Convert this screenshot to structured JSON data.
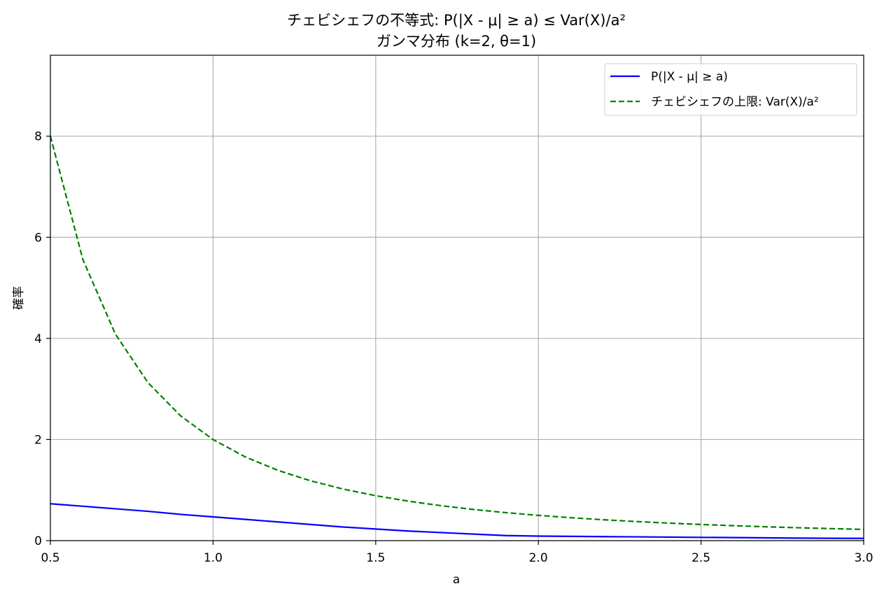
{
  "chart_data": {
    "type": "line",
    "title": "チェビシェフの不等式: P(|X - μ| ≥ a) ≤ Var(X)/a²",
    "subtitle": "ガンマ分布 (k=2, θ=1)",
    "xlabel": "a",
    "ylabel": "確率",
    "xlim": [
      0.5,
      3.0
    ],
    "ylim": [
      0,
      9.6
    ],
    "x_ticks": [
      "0.5",
      "1.0",
      "1.5",
      "2.0",
      "2.5",
      "3.0"
    ],
    "y_ticks": [
      "0",
      "2",
      "4",
      "6",
      "8"
    ],
    "grid": true,
    "legend_position": "upper right",
    "x": [
      0.5,
      0.6,
      0.7,
      0.8,
      0.9,
      1.0,
      1.1,
      1.2,
      1.3,
      1.4,
      1.5,
      1.6,
      1.7,
      1.8,
      1.9,
      2.0,
      2.1,
      2.2,
      2.3,
      2.4,
      2.5,
      2.6,
      2.7,
      2.8,
      2.9,
      3.0
    ],
    "series": [
      {
        "name": "P(|X - μ| ≥ a)",
        "color": "#0000ff",
        "style": "solid",
        "values": [
          0.73,
          0.68,
          0.63,
          0.58,
          0.52,
          0.47,
          0.42,
          0.37,
          0.32,
          0.27,
          0.23,
          0.19,
          0.16,
          0.13,
          0.1,
          0.09,
          0.085,
          0.08,
          0.075,
          0.07,
          0.065,
          0.06,
          0.055,
          0.05,
          0.047,
          0.045
        ]
      },
      {
        "name": "チェビシェフの上限: Var(X)/a²",
        "color": "#008000",
        "style": "dashed",
        "values": [
          8.0,
          5.556,
          4.082,
          3.125,
          2.469,
          2.0,
          1.653,
          1.389,
          1.183,
          1.02,
          0.889,
          0.781,
          0.692,
          0.617,
          0.554,
          0.5,
          0.454,
          0.413,
          0.378,
          0.347,
          0.32,
          0.296,
          0.274,
          0.255,
          0.238,
          0.222
        ]
      }
    ]
  }
}
